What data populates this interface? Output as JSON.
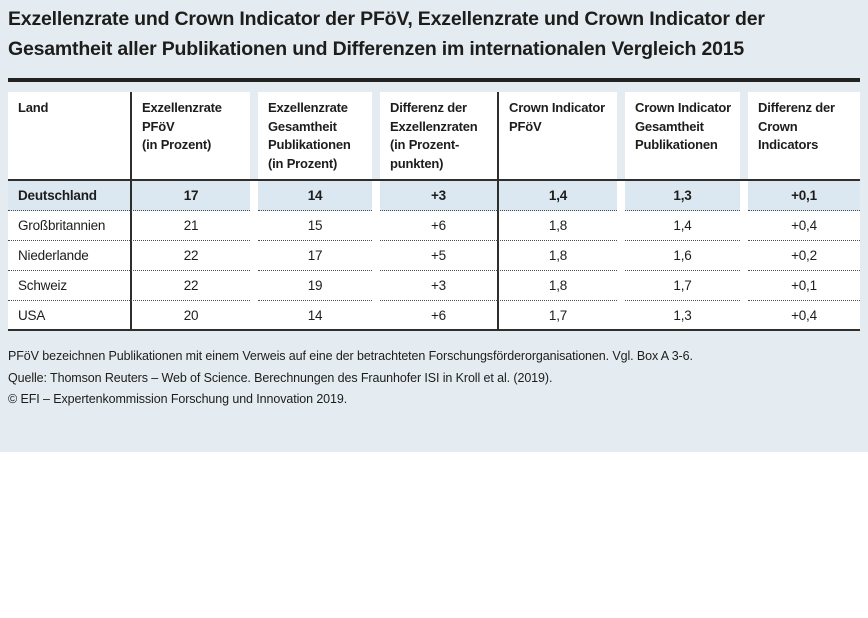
{
  "figure": {
    "title": "Exzellenzrate und Crown Indicator der PFöV, Exzellenzrate und Crown Indicator der\nGesamtheit aller Publikationen und Differenzen im internationalen Vergleich 2015"
  },
  "table": {
    "columns": [
      {
        "label": "Land"
      },
      {
        "label": "Exzellenzrate\nPFöV\n(in Prozent)"
      },
      {
        "label": "Exzellenzrate\nGesamtheit\nPublikationen\n(in Prozent)"
      },
      {
        "label": "Differenz der\nExzellenzraten\n(in Prozent-\npunkten)"
      },
      {
        "label": "Crown Indicator\nPFöV"
      },
      {
        "label": "Crown Indicator\nGesamtheit\nPublikationen"
      },
      {
        "label": "Differenz der\nCrown\nIndicators"
      }
    ],
    "rows": [
      {
        "land": "Deutschland",
        "highlight": true,
        "values": [
          "17",
          "14",
          "+3",
          "1,4",
          "1,3",
          "+0,1"
        ]
      },
      {
        "land": "Großbritannien",
        "highlight": false,
        "values": [
          "21",
          "15",
          "+6",
          "1,8",
          "1,4",
          "+0,4"
        ]
      },
      {
        "land": "Niederlande",
        "highlight": false,
        "values": [
          "22",
          "17",
          "+5",
          "1,8",
          "1,6",
          "+0,2"
        ]
      },
      {
        "land": "Schweiz",
        "highlight": false,
        "values": [
          "22",
          "19",
          "+3",
          "1,8",
          "1,7",
          "+0,1"
        ]
      },
      {
        "land": "USA",
        "highlight": false,
        "values": [
          "20",
          "14",
          "+6",
          "1,7",
          "1,3",
          "+0,4"
        ]
      }
    ]
  },
  "footnotes": [
    "PFöV bezeichnen Publikationen mit einem Verweis auf eine der betrachteten Forschungsförderorganisationen. Vgl. Box A 3-6.",
    "Quelle: Thomson Reuters – Web of Science. Berechnungen des Fraunhofer ISI in Kroll et al. (2019).",
    "© EFI – Expertenkommission Forschung und Innovation 2019."
  ],
  "colors": {
    "panel_background": "#e5ecf1",
    "highlight_row": "#dbe7f1",
    "cell_background": "#ffffff",
    "rule": "#2e2e2d",
    "text": "#1d1d1b"
  }
}
